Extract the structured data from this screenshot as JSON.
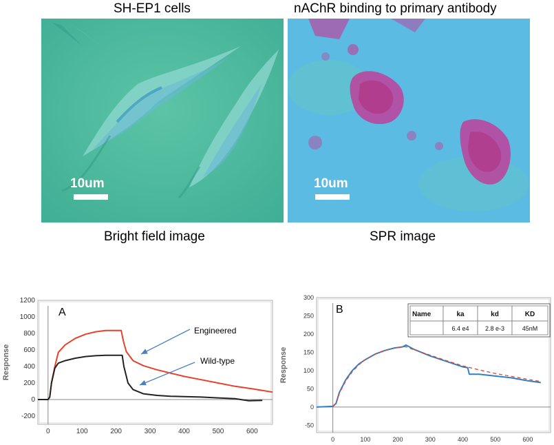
{
  "figure": {
    "left_title": "SH-EP1 cells",
    "right_title": "nAChR binding to primary antibody",
    "left_caption": "Bright field image",
    "right_caption": "SPR image",
    "left_scalebar": "10um",
    "right_scalebar": "10um"
  },
  "chart_data": [
    {
      "type": "line",
      "panel_label": "A",
      "ylabel": "Response",
      "xlim": [
        -30,
        660
      ],
      "ylim": [
        -300,
        1200
      ],
      "xticks": [
        0,
        100,
        200,
        300,
        400,
        500,
        600
      ],
      "yticks": [
        -200,
        0,
        200,
        400,
        600,
        800,
        1000,
        1200
      ],
      "xtick_labels": [
        "0",
        "100",
        "200",
        "300",
        "400",
        "500",
        "600"
      ],
      "ytick_labels": [
        "-200",
        "0",
        "200",
        "400",
        "600",
        "800",
        "1000",
        "1200"
      ],
      "annotations": [
        "Engineered",
        "Wild-type"
      ],
      "series": [
        {
          "name": "Engineered",
          "color": "#e8402a",
          "x": [
            -30,
            0,
            5,
            10,
            20,
            30,
            50,
            80,
            110,
            140,
            170,
            200,
            215,
            222,
            230,
            250,
            280,
            320,
            360,
            400,
            450,
            500,
            550,
            600,
            660
          ],
          "y": [
            0,
            0,
            30,
            200,
            400,
            570,
            660,
            740,
            790,
            820,
            835,
            835,
            835,
            700,
            580,
            470,
            410,
            360,
            320,
            280,
            240,
            200,
            160,
            130,
            90
          ]
        },
        {
          "name": "Wild-type",
          "color": "#222222",
          "x": [
            -30,
            0,
            5,
            10,
            20,
            30,
            50,
            80,
            110,
            140,
            170,
            200,
            218,
            223,
            235,
            250,
            280,
            320,
            360,
            400,
            450,
            500,
            550,
            590,
            630
          ],
          "y": [
            0,
            0,
            30,
            200,
            380,
            440,
            470,
            500,
            520,
            530,
            535,
            535,
            535,
            400,
            200,
            120,
            70,
            50,
            40,
            35,
            30,
            20,
            10,
            -15,
            -10
          ]
        }
      ]
    },
    {
      "type": "line",
      "panel_label": "B",
      "ylabel": "Response",
      "xlim": [
        -50,
        670
      ],
      "ylim": [
        -70,
        300
      ],
      "xticks": [
        0,
        100,
        200,
        300,
        400,
        500,
        600
      ],
      "yticks": [
        -50,
        0,
        50,
        100,
        150,
        200,
        250,
        300
      ],
      "xtick_labels": [
        "0",
        "100",
        "200",
        "300",
        "400",
        "500",
        "600"
      ],
      "ytick_labels": [
        "-50",
        "0",
        "50",
        "100",
        "150",
        "200",
        "250",
        "300"
      ],
      "table": {
        "headers": [
          "Name",
          "ka",
          "kd",
          "KD"
        ],
        "row": [
          "",
          "6.4 e4",
          "2.8 e-3",
          "45nM"
        ]
      },
      "series": [
        {
          "name": "",
          "color": "#2f7fc4",
          "x": [
            -50,
            0,
            10,
            20,
            40,
            60,
            80,
            100,
            130,
            160,
            190,
            215,
            225,
            250,
            300,
            350,
            400,
            415,
            420,
            450,
            500,
            550,
            600,
            640
          ],
          "y": [
            0,
            2,
            10,
            40,
            75,
            100,
            118,
            130,
            145,
            155,
            162,
            165,
            170,
            158,
            140,
            125,
            110,
            108,
            90,
            90,
            85,
            80,
            72,
            67
          ]
        },
        {
          "name": "",
          "color": "#e8402a",
          "dashed": true,
          "x": [
            0,
            10,
            20,
            40,
            60,
            80,
            100,
            130,
            160,
            190,
            215,
            225,
            250,
            300,
            350,
            400,
            450,
            500,
            550,
            600,
            640
          ],
          "y": [
            2,
            10,
            38,
            72,
            97,
            116,
            130,
            145,
            155,
            162,
            165,
            165,
            157,
            142,
            127,
            113,
            102,
            92,
            84,
            76,
            70
          ]
        }
      ]
    }
  ]
}
